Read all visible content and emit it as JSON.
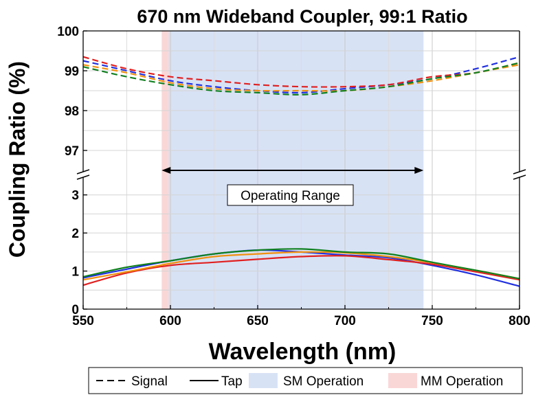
{
  "chart_data": {
    "type": "line",
    "title": "670 nm Wideband Coupler, 99:1 Ratio",
    "xlabel": "Wavelength (nm)",
    "ylabel": "Coupling Ratio (%)",
    "xlim": [
      550,
      800
    ],
    "ylim_top": [
      96.5,
      100
    ],
    "ylim_bottom": [
      0,
      3.5
    ],
    "x_ticks": [
      "550",
      "600",
      "650",
      "700",
      "750",
      "800"
    ],
    "y_ticks_top": [
      "97",
      "98",
      "99",
      "100"
    ],
    "y_ticks_bottom": [
      "0",
      "1",
      "2",
      "3"
    ],
    "grid": true,
    "axis_break": "y",
    "x": [
      550,
      575,
      600,
      625,
      650,
      675,
      700,
      725,
      750,
      775,
      800
    ],
    "series": [
      {
        "style": "dashed",
        "color": "#2030e0",
        "values": [
          99.25,
          99.0,
          98.75,
          98.6,
          98.5,
          98.45,
          98.55,
          98.65,
          98.8,
          99.05,
          99.35
        ]
      },
      {
        "style": "dashed",
        "color": "#e02020",
        "values": [
          99.35,
          99.05,
          98.85,
          98.75,
          98.65,
          98.6,
          98.6,
          98.65,
          98.85,
          98.95,
          99.2
        ]
      },
      {
        "style": "dashed",
        "color": "#f09010",
        "values": [
          99.15,
          98.95,
          98.7,
          98.55,
          98.5,
          98.5,
          98.5,
          98.6,
          98.75,
          98.95,
          99.15
        ]
      },
      {
        "style": "dashed",
        "color": "#108020",
        "values": [
          99.1,
          98.85,
          98.65,
          98.5,
          98.45,
          98.4,
          98.5,
          98.6,
          98.8,
          98.95,
          99.2
        ]
      },
      {
        "style": "solid",
        "color": "#2030e0",
        "values": [
          0.82,
          1.05,
          1.27,
          1.45,
          1.55,
          1.5,
          1.42,
          1.35,
          1.15,
          0.9,
          0.6
        ]
      },
      {
        "style": "solid",
        "color": "#e02020",
        "values": [
          0.63,
          0.95,
          1.15,
          1.23,
          1.31,
          1.38,
          1.4,
          1.3,
          1.18,
          0.98,
          0.77
        ]
      },
      {
        "style": "solid",
        "color": "#f09010",
        "values": [
          0.77,
          0.98,
          1.2,
          1.38,
          1.45,
          1.5,
          1.48,
          1.38,
          1.22,
          1.02,
          0.8
        ]
      },
      {
        "style": "solid",
        "color": "#108020",
        "values": [
          0.85,
          1.1,
          1.27,
          1.45,
          1.55,
          1.58,
          1.5,
          1.45,
          1.23,
          1.02,
          0.8
        ]
      }
    ],
    "bands": [
      {
        "name": "SM Operation",
        "from": 599,
        "to": 745,
        "color": "#d8e2f5"
      },
      {
        "name": "MM Operation",
        "from": 595,
        "to": 599,
        "color": "#fad7d7"
      }
    ],
    "annotation": {
      "text": "Operating Range",
      "x_from": 595,
      "x_to": 745,
      "y": 3.7
    },
    "legend": {
      "placement": "bottom",
      "entries": [
        {
          "label": "Signal",
          "kind": "dashed"
        },
        {
          "label": "Tap",
          "kind": "solid"
        },
        {
          "label": "SM Operation",
          "kind": "swatch",
          "color": "#d8e2f5"
        },
        {
          "label": "MM Operation",
          "kind": "swatch",
          "color": "#fad7d7"
        }
      ]
    }
  }
}
